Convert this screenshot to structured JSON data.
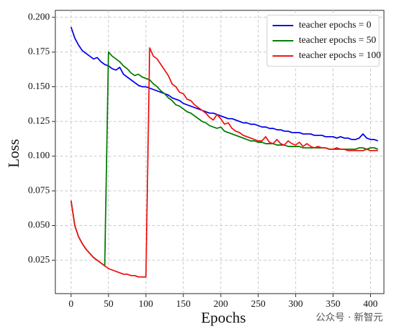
{
  "chart_data": {
    "type": "line",
    "xlabel": "Epochs",
    "ylabel": "Loss",
    "watermark": "公众号 · 新智元",
    "x": [
      0,
      5,
      10,
      15,
      20,
      25,
      30,
      35,
      40,
      45,
      50,
      55,
      60,
      65,
      70,
      75,
      80,
      85,
      90,
      95,
      100,
      105,
      110,
      115,
      120,
      125,
      130,
      135,
      140,
      145,
      150,
      155,
      160,
      165,
      170,
      175,
      180,
      185,
      190,
      195,
      200,
      205,
      210,
      215,
      220,
      225,
      230,
      235,
      240,
      245,
      250,
      255,
      260,
      265,
      270,
      275,
      280,
      285,
      290,
      295,
      300,
      305,
      310,
      315,
      320,
      325,
      330,
      335,
      340,
      345,
      350,
      355,
      360,
      365,
      370,
      375,
      380,
      385,
      390,
      395,
      400,
      405,
      410
    ],
    "series": [
      {
        "name": "teacher epochs = 0",
        "color": "#0000ee",
        "values": [
          0.193,
          0.185,
          0.18,
          0.176,
          0.174,
          0.172,
          0.17,
          0.171,
          0.168,
          0.166,
          0.165,
          0.163,
          0.162,
          0.164,
          0.159,
          0.157,
          0.155,
          0.153,
          0.151,
          0.15,
          0.15,
          0.149,
          0.148,
          0.147,
          0.146,
          0.145,
          0.144,
          0.142,
          0.141,
          0.14,
          0.138,
          0.137,
          0.136,
          0.135,
          0.134,
          0.133,
          0.132,
          0.131,
          0.131,
          0.13,
          0.129,
          0.128,
          0.127,
          0.127,
          0.126,
          0.125,
          0.124,
          0.124,
          0.123,
          0.123,
          0.122,
          0.121,
          0.121,
          0.12,
          0.12,
          0.119,
          0.119,
          0.118,
          0.118,
          0.117,
          0.117,
          0.117,
          0.116,
          0.116,
          0.116,
          0.115,
          0.115,
          0.115,
          0.114,
          0.114,
          0.114,
          0.113,
          0.114,
          0.113,
          0.113,
          0.112,
          0.112,
          0.113,
          0.116,
          0.113,
          0.112,
          0.112,
          0.111
        ]
      },
      {
        "name": "teacher epochs = 50",
        "color": "#007a00",
        "values": [
          0.068,
          0.05,
          0.042,
          0.037,
          0.033,
          0.03,
          0.027,
          0.025,
          0.023,
          0.021,
          0.175,
          0.172,
          0.17,
          0.168,
          0.165,
          0.163,
          0.16,
          0.158,
          0.159,
          0.157,
          0.156,
          0.155,
          0.152,
          0.15,
          0.147,
          0.145,
          0.142,
          0.14,
          0.137,
          0.136,
          0.134,
          0.132,
          0.131,
          0.129,
          0.127,
          0.125,
          0.124,
          0.122,
          0.121,
          0.12,
          0.121,
          0.118,
          0.117,
          0.116,
          0.115,
          0.114,
          0.113,
          0.112,
          0.111,
          0.111,
          0.11,
          0.11,
          0.109,
          0.109,
          0.109,
          0.108,
          0.108,
          0.108,
          0.107,
          0.107,
          0.107,
          0.107,
          0.106,
          0.106,
          0.106,
          0.106,
          0.106,
          0.106,
          0.106,
          0.105,
          0.105,
          0.105,
          0.105,
          0.105,
          0.105,
          0.105,
          0.105,
          0.106,
          0.106,
          0.105,
          0.106,
          0.106,
          0.105
        ]
      },
      {
        "name": "teacher epochs = 100",
        "color": "#ee1111",
        "values": [
          0.068,
          0.05,
          0.042,
          0.037,
          0.033,
          0.03,
          0.027,
          0.025,
          0.023,
          0.021,
          0.019,
          0.018,
          0.017,
          0.016,
          0.015,
          0.015,
          0.014,
          0.014,
          0.013,
          0.013,
          0.013,
          0.178,
          0.172,
          0.17,
          0.166,
          0.162,
          0.158,
          0.152,
          0.15,
          0.146,
          0.145,
          0.141,
          0.14,
          0.137,
          0.135,
          0.133,
          0.131,
          0.128,
          0.126,
          0.13,
          0.127,
          0.123,
          0.124,
          0.12,
          0.118,
          0.117,
          0.115,
          0.114,
          0.113,
          0.112,
          0.111,
          0.111,
          0.114,
          0.11,
          0.109,
          0.112,
          0.109,
          0.108,
          0.111,
          0.109,
          0.108,
          0.11,
          0.107,
          0.109,
          0.107,
          0.106,
          0.107,
          0.106,
          0.106,
          0.105,
          0.105,
          0.106,
          0.105,
          0.105,
          0.104,
          0.104,
          0.104,
          0.104,
          0.104,
          0.105,
          0.104,
          0.104,
          0.104
        ]
      }
    ],
    "xlim": [
      -21,
      418
    ],
    "ylim": [
      0.001,
      0.205
    ],
    "xticks": [
      0,
      50,
      100,
      150,
      200,
      250,
      300,
      350,
      400
    ],
    "yticks": [
      0.025,
      {
        "value": 0.05,
        "label": "0.050"
      },
      0.075,
      {
        "value": 0.1,
        "label": "0.100"
      },
      0.125,
      {
        "value": 0.15,
        "label": "0.150"
      },
      0.175,
      {
        "value": 0.2,
        "label": "0.200"
      }
    ],
    "grid": true,
    "legend": "upper right"
  }
}
